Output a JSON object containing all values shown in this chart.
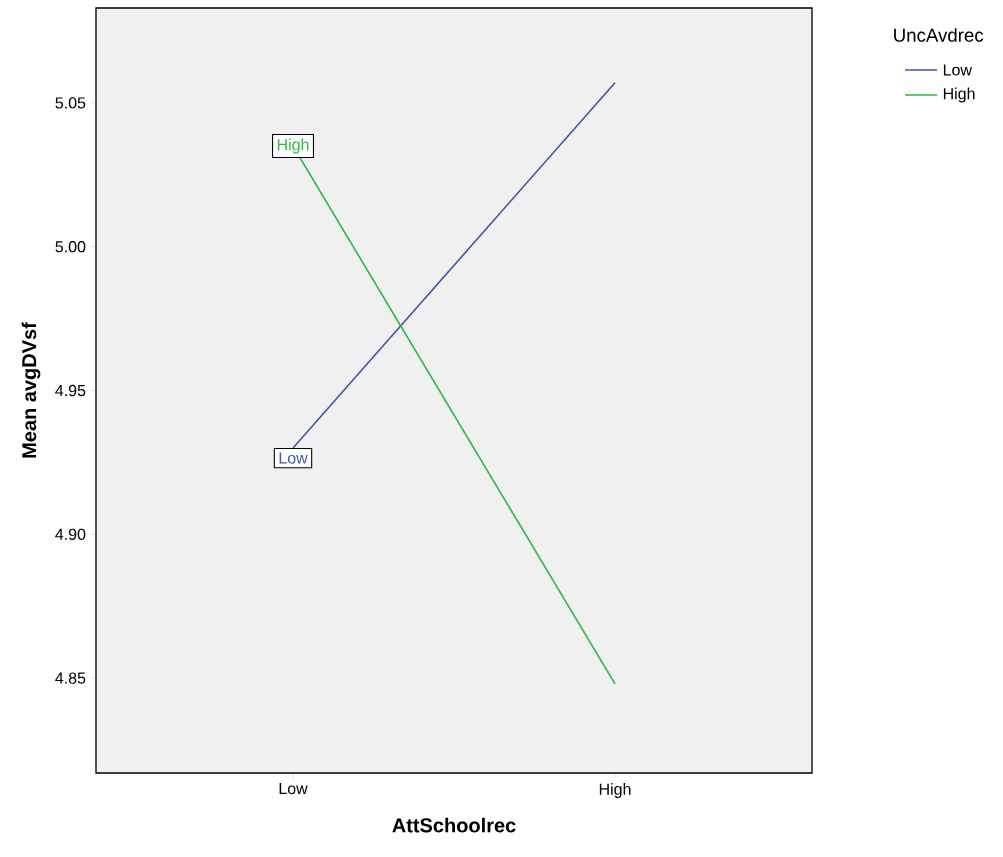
{
  "chart_data": {
    "type": "line",
    "xlabel": "AttSchoolrec",
    "ylabel": "Mean avgDVsf",
    "legend_title": "UncAvdrec",
    "categories": [
      "Low",
      "High"
    ],
    "series": [
      {
        "name": "Low",
        "color": "#3f55a6",
        "values": [
          4.93,
          5.057
        ]
      },
      {
        "name": "High",
        "color": "#2db83d",
        "values": [
          5.035,
          4.848
        ]
      }
    ],
    "ylim": [
      4.817,
      5.083
    ],
    "yticks": [
      4.85,
      {
        "value": 4.9,
        "label": "4.90"
      },
      4.95,
      {
        "value": 5.0,
        "label": "5.00"
      },
      5.05
    ],
    "legend": "top right",
    "line_style": "solid",
    "grid": false
  }
}
